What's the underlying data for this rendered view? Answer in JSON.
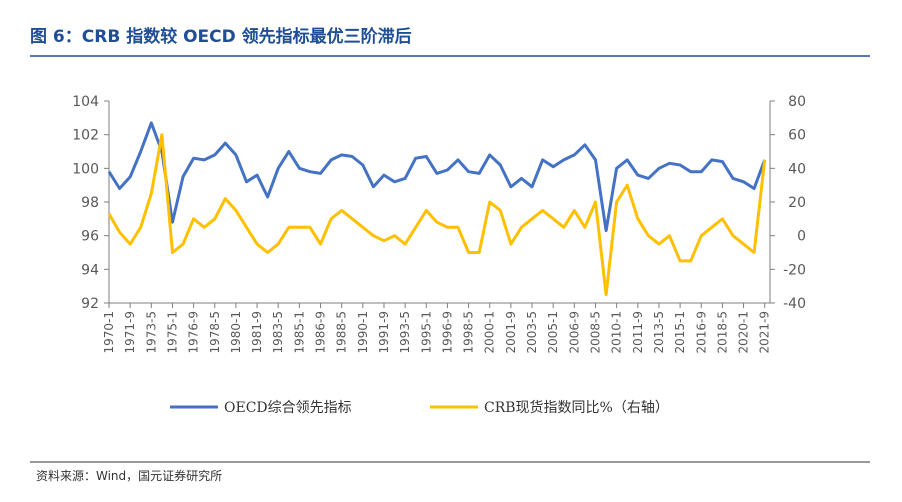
{
  "chart_data": {
    "type": "line",
    "title": "图 6：CRB 指数较 OECD 领先指标最优三阶滞后",
    "source": "资料来源：Wind，国元证券研究所",
    "categories": [
      "1970-1",
      null,
      "1971-9",
      null,
      "1973-5",
      null,
      "1975-1",
      null,
      "1976-9",
      null,
      "1978-5",
      null,
      "1980-1",
      null,
      "1981-9",
      null,
      "1983-5",
      null,
      "1985-1",
      null,
      "1986-9",
      null,
      "1988-5",
      null,
      "1990-1",
      null,
      "1991-9",
      null,
      "1993-5",
      null,
      "1995-1",
      null,
      "1996-9",
      null,
      "1998-5",
      null,
      "2000-1",
      null,
      "2001-9",
      null,
      "2003-5",
      null,
      "2005-1",
      null,
      "2006-9",
      null,
      "2008-5",
      null,
      "2010-1",
      null,
      "2011-9",
      null,
      "2013-5",
      null,
      "2015-1",
      null,
      "2016-9",
      null,
      "2018-5",
      null,
      "2020-1",
      null,
      "2021-9"
    ],
    "series": [
      {
        "name": "OECD综合领先指标",
        "color": "#4472c4",
        "axis": "y",
        "values": [
          99.8,
          98.8,
          99.5,
          101.0,
          102.7,
          101.0,
          96.8,
          99.5,
          100.6,
          100.5,
          100.8,
          101.5,
          100.8,
          99.2,
          99.6,
          98.3,
          100.0,
          101.0,
          100.0,
          99.8,
          99.7,
          100.5,
          100.8,
          100.7,
          100.2,
          98.9,
          99.6,
          99.2,
          99.4,
          100.6,
          100.7,
          99.7,
          99.9,
          100.5,
          99.8,
          99.7,
          100.8,
          100.2,
          98.9,
          99.4,
          98.9,
          100.5,
          100.1,
          100.5,
          100.8,
          101.4,
          100.5,
          96.3,
          100.0,
          100.5,
          99.6,
          99.4,
          100.0,
          100.3,
          100.2,
          99.8,
          99.8,
          100.5,
          100.4,
          99.4,
          99.2,
          98.8,
          100.5
        ]
      },
      {
        "name": "CRB现货指数同比%（右轴）",
        "color": "#ffc000",
        "axis": "y2",
        "values": [
          13,
          2,
          -5,
          5,
          25,
          60,
          -10,
          -5,
          10,
          5,
          10,
          22,
          15,
          5,
          -5,
          -10,
          -5,
          5,
          5,
          5,
          -5,
          10,
          15,
          10,
          5,
          0,
          -3,
          0,
          -5,
          5,
          15,
          8,
          5,
          5,
          -10,
          -10,
          20,
          15,
          -5,
          5,
          10,
          15,
          10,
          5,
          15,
          5,
          20,
          -35,
          20,
          30,
          10,
          0,
          -5,
          0,
          -15,
          -15,
          0,
          5,
          10,
          0,
          -5,
          -10,
          45
        ]
      }
    ],
    "ylim": [
      92,
      104
    ],
    "yticks": [
      92,
      94,
      96,
      98,
      100,
      102,
      104
    ],
    "y2lim": [
      -40,
      80
    ],
    "y2ticks": [
      -40,
      -20,
      0,
      20,
      40,
      60,
      80
    ]
  }
}
